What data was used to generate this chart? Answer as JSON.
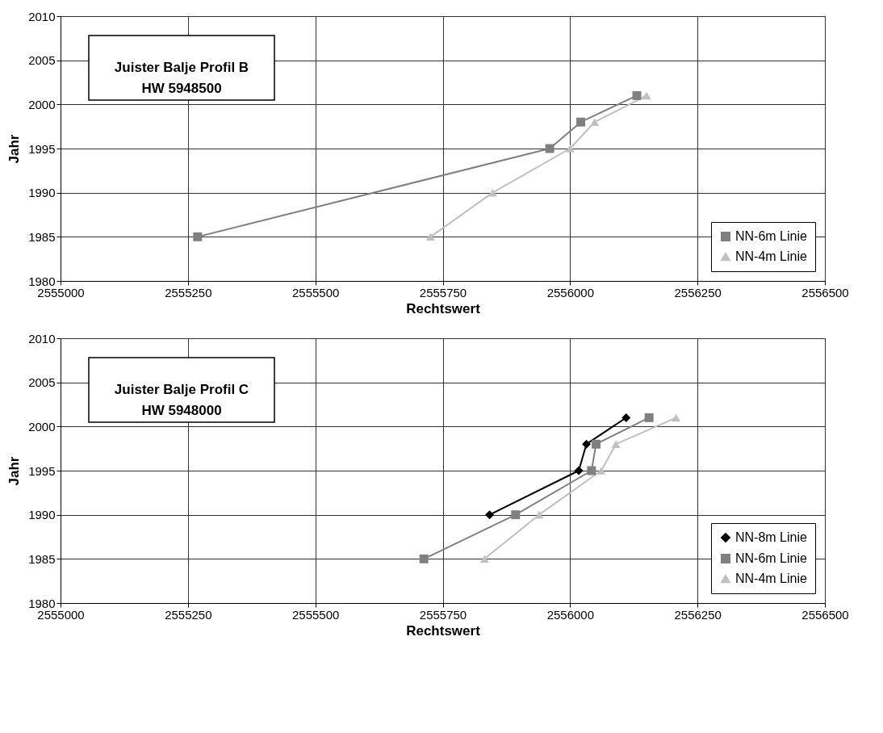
{
  "chart_data": [
    {
      "type": "line",
      "xlabel": "Rechtswert",
      "ylabel": "Jahr",
      "annotations": [
        "Juister Balje Profil B\nHW 5948500"
      ],
      "xlim": [
        2555000,
        2556500
      ],
      "xticks": [
        2555000,
        2555250,
        2555500,
        2555750,
        2556000,
        2556250,
        2556500
      ],
      "ylim": [
        1980,
        2010
      ],
      "yticks": [
        1980,
        1985,
        1990,
        1995,
        2000,
        2005,
        2010
      ],
      "grid": true,
      "legend": "bottom right",
      "series": [
        {
          "name": "NN-6m Linie",
          "color": "#808080",
          "marker": "square",
          "x": [
            2555269,
            2555960,
            2556021,
            2556131
          ],
          "values": [
            1985,
            1995,
            1998,
            2001
          ]
        },
        {
          "name": "NN-4m Linie",
          "color": "#c0c0c0",
          "marker": "triangle",
          "x": [
            2555726,
            2555848,
            2556000,
            2556048,
            2556150
          ],
          "values": [
            1985,
            1990,
            1995,
            1998,
            2001
          ]
        }
      ]
    },
    {
      "type": "line",
      "xlabel": "Rechtswert",
      "ylabel": "Jahr",
      "annotations": [
        "Juister Balje Profil C\nHW 5948000"
      ],
      "xlim": [
        2555000,
        2556500
      ],
      "xticks": [
        2555000,
        2555250,
        2555500,
        2555750,
        2556000,
        2556250,
        2556500
      ],
      "ylim": [
        1980,
        2010
      ],
      "yticks": [
        1980,
        1985,
        1990,
        1995,
        2000,
        2005,
        2010
      ],
      "grid": true,
      "legend": "bottom right",
      "series": [
        {
          "name": "NN-8m Linie",
          "color": "#000000",
          "marker": "diamond",
          "x": [
            2555842,
            2556017,
            2556032,
            2556110
          ],
          "values": [
            1990,
            1995,
            1998,
            2001
          ]
        },
        {
          "name": "NN-6m Linie",
          "color": "#808080",
          "marker": "square",
          "x": [
            2555713,
            2555893,
            2556042,
            2556051,
            2556155
          ],
          "values": [
            1985,
            1990,
            1995,
            1998,
            2001
          ]
        },
        {
          "name": "NN-4m Linie",
          "color": "#c0c0c0",
          "marker": "triangle",
          "x": [
            2555832,
            2555939,
            2556061,
            2556090,
            2556208
          ],
          "values": [
            1985,
            1990,
            1995,
            1998,
            2001
          ]
        }
      ]
    }
  ]
}
